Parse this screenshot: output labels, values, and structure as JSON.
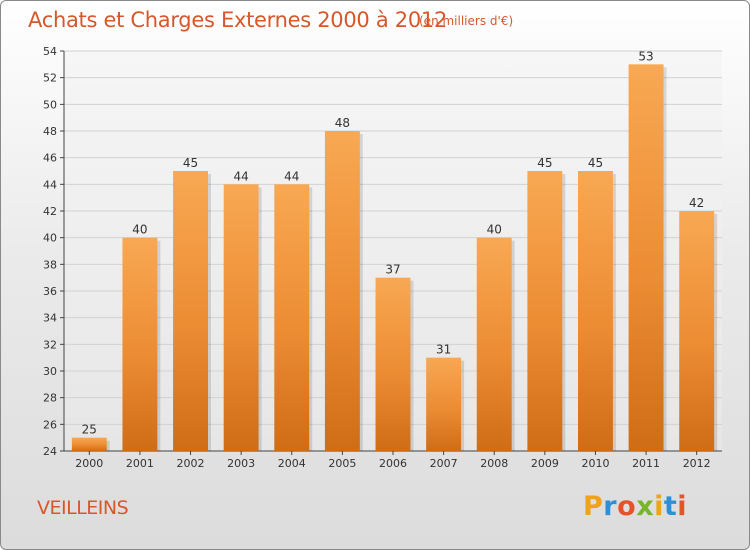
{
  "header": {
    "title": "Achats et Charges Externes 2000 à 2012",
    "subtitle": "(en milliers d'€)"
  },
  "footer": {
    "commune": "VEILLEINS",
    "logo": "Proxiti"
  },
  "colors": {
    "title": "#d8572a",
    "bar_light": "#f7a54e",
    "bar_dark": "#d06d14",
    "grid": "#cfcfcf"
  },
  "chart_data": {
    "type": "bar",
    "title": "Achats et Charges Externes 2000 à 2012",
    "subtitle": "(en milliers d'€)",
    "categories": [
      "2000",
      "2001",
      "2002",
      "2003",
      "2004",
      "2005",
      "2006",
      "2007",
      "2008",
      "2009",
      "2010",
      "2011",
      "2012"
    ],
    "values": [
      25,
      40,
      45,
      44,
      44,
      48,
      37,
      31,
      40,
      45,
      45,
      53,
      42
    ],
    "ylim": [
      24,
      54
    ],
    "yticks": [
      24,
      26,
      28,
      30,
      32,
      34,
      36,
      38,
      40,
      42,
      44,
      46,
      48,
      50,
      52,
      54
    ],
    "grid": true,
    "data_labels": true
  }
}
